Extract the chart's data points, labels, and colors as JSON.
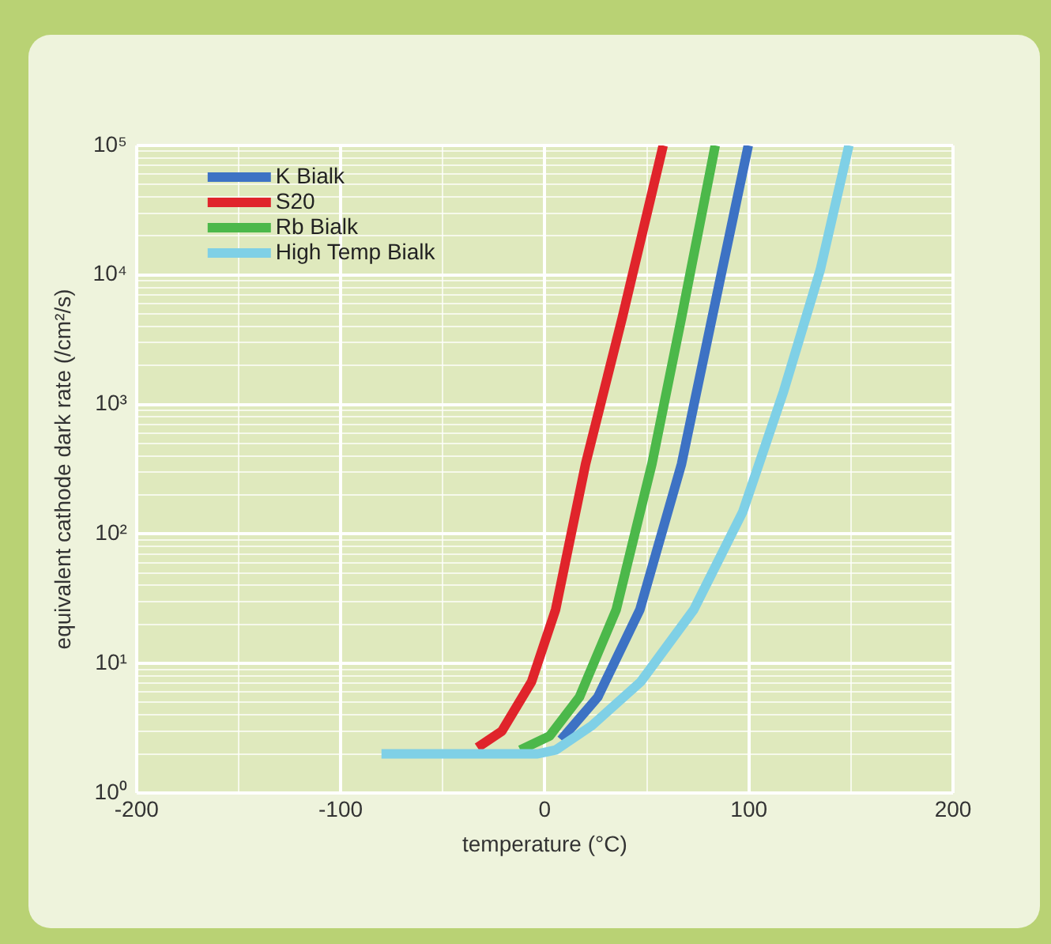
{
  "chart_data": {
    "type": "line",
    "xlabel": "temperature (°C)",
    "ylabel": "equivalent cathode dark rate (/cm²/s)",
    "xlim": [
      -200,
      200
    ],
    "xticks": [
      -200,
      {
        "value": -150,
        "label": null
      },
      -100,
      {
        "value": -50,
        "label": null
      },
      0,
      {
        "value": 50,
        "label": null
      },
      100,
      {
        "value": 150,
        "label": null
      },
      200
    ],
    "ylim": [
      1,
      100000
    ],
    "yticks": [
      {
        "value": 1,
        "label": "10⁰"
      },
      {
        "value": 2,
        "label": null
      },
      {
        "value": 3,
        "label": null
      },
      {
        "value": 4,
        "label": null
      },
      {
        "value": 5,
        "label": null
      },
      {
        "value": 6,
        "label": null
      },
      {
        "value": 7,
        "label": null
      },
      {
        "value": 8,
        "label": null
      },
      {
        "value": 9,
        "label": null
      },
      {
        "value": 10,
        "label": "10¹"
      },
      {
        "value": 20,
        "label": null
      },
      {
        "value": 30,
        "label": null
      },
      {
        "value": 40,
        "label": null
      },
      {
        "value": 50,
        "label": null
      },
      {
        "value": 60,
        "label": null
      },
      {
        "value": 70,
        "label": null
      },
      {
        "value": 80,
        "label": null
      },
      {
        "value": 90,
        "label": null
      },
      {
        "value": 100,
        "label": "10²"
      },
      {
        "value": 200,
        "label": null
      },
      {
        "value": 300,
        "label": null
      },
      {
        "value": 400,
        "label": null
      },
      {
        "value": 500,
        "label": null
      },
      {
        "value": 600,
        "label": null
      },
      {
        "value": 700,
        "label": null
      },
      {
        "value": 800,
        "label": null
      },
      {
        "value": 900,
        "label": null
      },
      {
        "value": 1000,
        "label": "10³"
      },
      {
        "value": 2000,
        "label": null
      },
      {
        "value": 3000,
        "label": null
      },
      {
        "value": 4000,
        "label": null
      },
      {
        "value": 5000,
        "label": null
      },
      {
        "value": 6000,
        "label": null
      },
      {
        "value": 7000,
        "label": null
      },
      {
        "value": 8000,
        "label": null
      },
      {
        "value": 9000,
        "label": null
      },
      {
        "value": 10000,
        "label": "10⁴"
      },
      {
        "value": 20000,
        "label": null
      },
      {
        "value": 30000,
        "label": null
      },
      {
        "value": 40000,
        "label": null
      },
      {
        "value": 50000,
        "label": null
      },
      {
        "value": 60000,
        "label": null
      },
      {
        "value": 70000,
        "label": null
      },
      {
        "value": 80000,
        "label": null
      },
      {
        "value": 90000,
        "label": null
      },
      {
        "value": 100000,
        "label": "10⁵"
      }
    ],
    "log": "y",
    "grid": true,
    "legend": "top left",
    "marker": "none",
    "line_style": "solid",
    "series": [
      {
        "name": "K Bialk",
        "color": "#3d72c4",
        "x": [
          8,
          26,
          46.6,
          67,
          82,
          99.7
        ],
        "values": [
          2.57,
          5.5,
          26,
          347,
          4700,
          100000
        ]
      },
      {
        "name": "S20",
        "color": "#e0242b",
        "x": [
          -33,
          -21,
          -6.5,
          5.3,
          20,
          38,
          58
        ],
        "values": [
          2.24,
          3,
          7.2,
          26,
          347,
          4700,
          100000
        ]
      },
      {
        "name": "Rb Bialk",
        "color": "#4cb84a",
        "x": [
          -12,
          2.4,
          17,
          35,
          52.5,
          67,
          83.5
        ],
        "values": [
          2.14,
          2.75,
          5.5,
          26,
          347,
          4700,
          100000
        ]
      },
      {
        "name": "High Temp Bialk",
        "color": "#7fd0e6",
        "x": [
          -80,
          -3.5,
          5.3,
          23,
          47,
          73,
          97,
          117,
          135,
          149
        ],
        "values": [
          2,
          2,
          2.14,
          3.3,
          7.2,
          26,
          148,
          1260,
          11000,
          100000
        ]
      }
    ]
  }
}
